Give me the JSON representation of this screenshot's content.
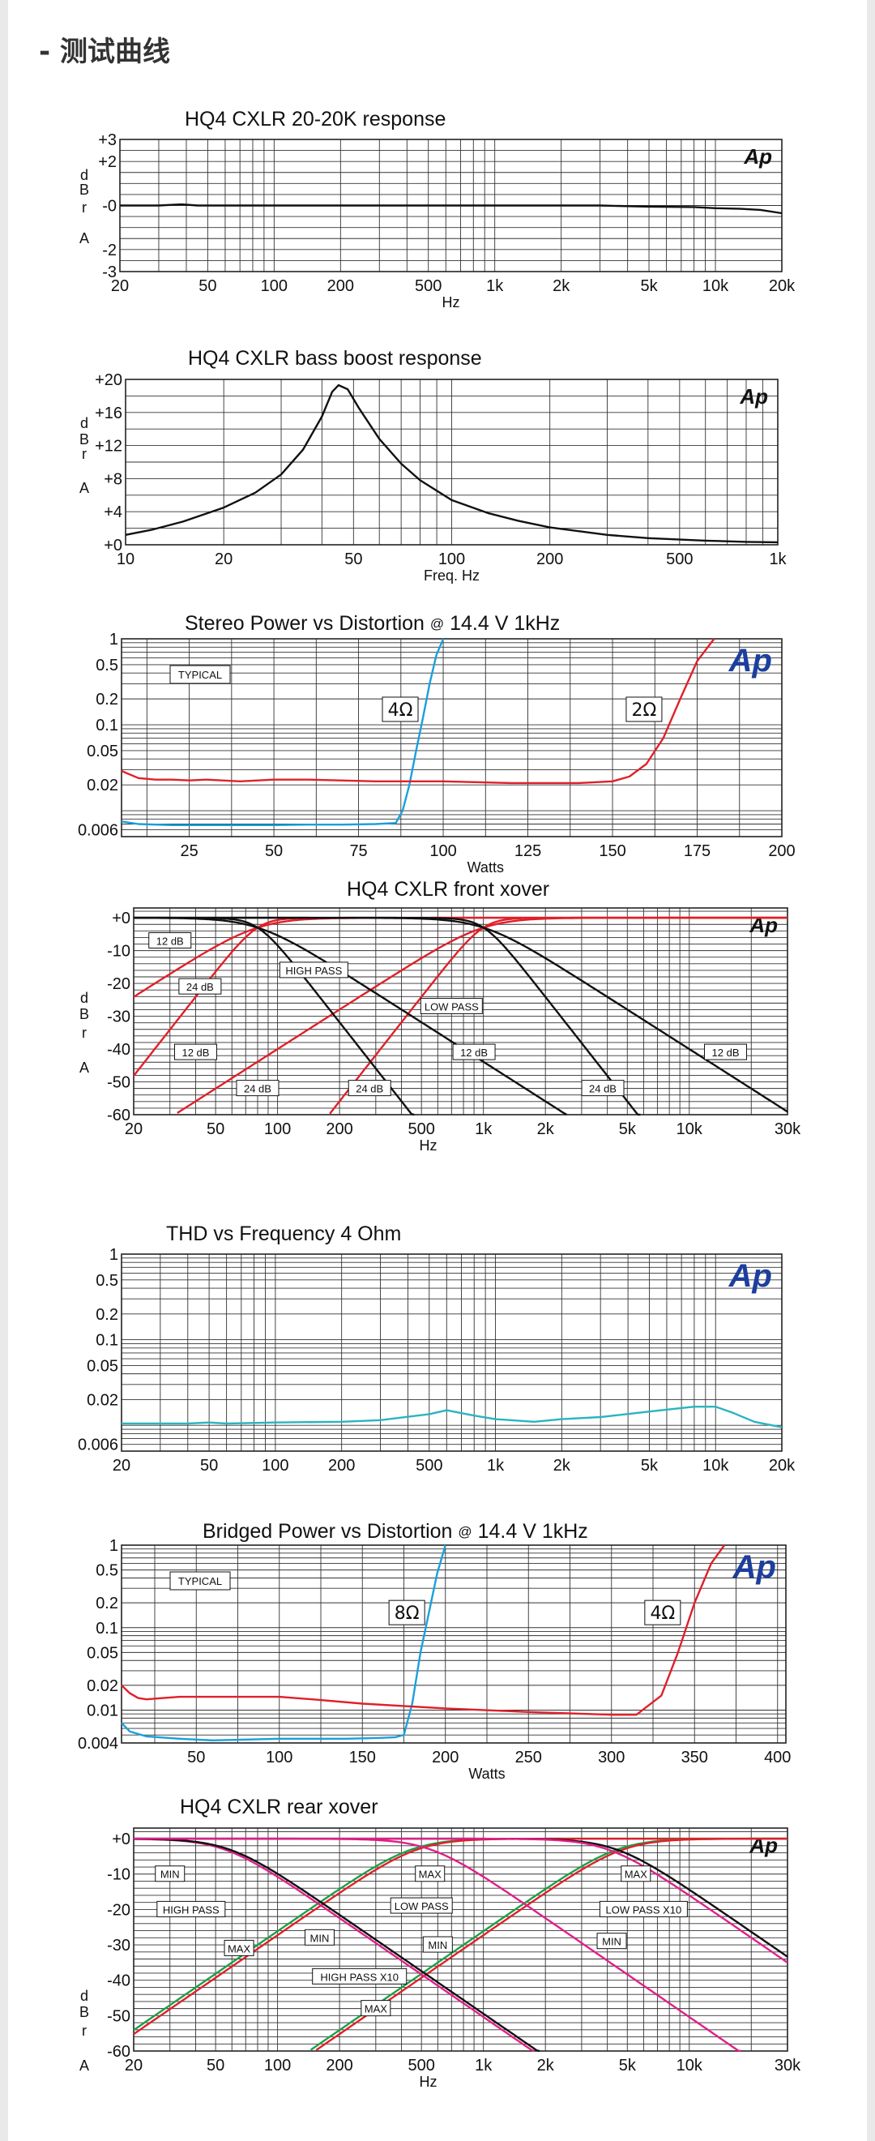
{
  "section": {
    "title": "- 测试曲线"
  },
  "colors": {
    "black": "#111111",
    "red": "#e0202a",
    "blue": "#1aa0dc",
    "cyan": "#2ab4c0",
    "green": "#1aa04a",
    "magenta": "#e0208a",
    "ap_blue": "#1c3f9e"
  },
  "chart_data": [
    {
      "id": "c1",
      "type": "line",
      "scale_x": "log",
      "title": "HQ4 CXLR 20-20K response",
      "xlabel": "Hz",
      "ylabel_letters": [
        "d",
        "B",
        "r",
        "A"
      ],
      "xlim": [
        20,
        20000
      ],
      "ylim": [
        -3,
        3
      ],
      "xticks": [
        20,
        50,
        100,
        200,
        500,
        1000,
        2000,
        5000,
        10000,
        20000
      ],
      "xtick_labels": [
        "20",
        "50",
        "100",
        "200",
        "500",
        "1k",
        "2k",
        "5k",
        "10k",
        "20k"
      ],
      "yticks": [
        3,
        2,
        0,
        -2,
        -3
      ],
      "ytick_labels": [
        "+3",
        "+2",
        "-0",
        "-2",
        "-3"
      ],
      "logo": "Ap",
      "series": [
        {
          "name": "response",
          "color": "#111111",
          "x": [
            20,
            30,
            38,
            45,
            60,
            100,
            300,
            1000,
            3000,
            5000,
            8000,
            10000,
            13000,
            16000,
            20000
          ],
          "y": [
            0,
            0,
            0.05,
            0,
            0,
            0,
            0,
            0,
            0,
            -0.05,
            -0.07,
            -0.12,
            -0.15,
            -0.2,
            -0.35
          ]
        }
      ]
    },
    {
      "id": "c2",
      "type": "line",
      "scale_x": "log",
      "title": "HQ4 CXLR bass boost response",
      "xlabel": "Freq. Hz",
      "ylabel_letters": [
        "d",
        "B",
        "r",
        "A"
      ],
      "xlim": [
        10,
        1000
      ],
      "ylim": [
        0,
        20
      ],
      "xticks": [
        10,
        20,
        50,
        100,
        200,
        500,
        1000
      ],
      "xtick_labels": [
        "10",
        "20",
        "50",
        "100",
        "200",
        "500",
        "1k"
      ],
      "yticks": [
        20,
        16,
        12,
        8,
        4,
        0
      ],
      "ytick_labels": [
        "+20",
        "+16",
        "+12",
        "+8",
        "+4",
        "+0"
      ],
      "logo": "Ap",
      "series": [
        {
          "name": "bass boost",
          "color": "#111111",
          "x": [
            10,
            12,
            15,
            20,
            25,
            30,
            35,
            40,
            43,
            45,
            48,
            52,
            60,
            70,
            80,
            100,
            130,
            160,
            200,
            300,
            400,
            600,
            800,
            1000
          ],
          "y": [
            1.2,
            1.8,
            2.8,
            4.5,
            6.3,
            8.5,
            11.5,
            15.5,
            18.5,
            19.3,
            18.8,
            16.5,
            12.8,
            9.8,
            7.8,
            5.4,
            3.8,
            2.9,
            2.1,
            1.2,
            0.8,
            0.5,
            0.35,
            0.3
          ]
        }
      ]
    },
    {
      "id": "c3",
      "type": "line",
      "scale_x": "linear",
      "scale_y": "log",
      "title": "Stereo Power vs Distortion",
      "title_at": "@",
      "title_rest": "14.4 V 1kHz",
      "xlabel": "Watts",
      "xlim": [
        5,
        200
      ],
      "ylim": [
        0.005,
        1
      ],
      "xticks": [
        25,
        50,
        75,
        100,
        125,
        150,
        175,
        200
      ],
      "xtick_labels": [
        "25",
        "50",
        "75",
        "100",
        "125",
        "150",
        "175",
        "200"
      ],
      "yticks": [
        1,
        0.5,
        0.2,
        0.1,
        0.05,
        0.02,
        0.006
      ],
      "ytick_labels": [
        "1",
        "0.5",
        "0.2",
        "0.1",
        "0.05",
        "0.02",
        "0.006"
      ],
      "logo": "Ap",
      "note": "TYPICAL",
      "load_labels": [
        {
          "text": "4Ω",
          "x": 83,
          "y": 0.13
        },
        {
          "text": "2Ω",
          "x": 155,
          "y": 0.13
        }
      ],
      "series": [
        {
          "name": "4Ω",
          "color": "#1aa0dc",
          "x": [
            5,
            10,
            20,
            30,
            40,
            50,
            60,
            70,
            80,
            86,
            88,
            90,
            92,
            94,
            96,
            98,
            100
          ],
          "y": [
            0.0075,
            0.007,
            0.0068,
            0.0068,
            0.0068,
            0.0068,
            0.0069,
            0.0069,
            0.007,
            0.0072,
            0.01,
            0.02,
            0.05,
            0.12,
            0.3,
            0.65,
            1.0
          ]
        },
        {
          "name": "2Ω",
          "color": "#e0202a",
          "x": [
            5,
            10,
            15,
            20,
            25,
            30,
            40,
            50,
            60,
            80,
            100,
            120,
            140,
            150,
            155,
            160,
            165,
            170,
            175,
            180
          ],
          "y": [
            0.029,
            0.024,
            0.023,
            0.023,
            0.0225,
            0.023,
            0.022,
            0.023,
            0.023,
            0.022,
            0.022,
            0.021,
            0.021,
            0.022,
            0.025,
            0.035,
            0.07,
            0.2,
            0.55,
            1.0
          ]
        }
      ]
    },
    {
      "id": "c4",
      "type": "line",
      "scale_x": "log",
      "title": "HQ4 CXLR front xover",
      "xlabel": "Hz",
      "ylabel_letters": [
        "d",
        "B",
        "r",
        "A"
      ],
      "xlim": [
        20,
        30000
      ],
      "ylim": [
        -60,
        3
      ],
      "xticks": [
        20,
        50,
        100,
        200,
        500,
        1000,
        2000,
        5000,
        10000,
        30000
      ],
      "xtick_labels": [
        "20",
        "50",
        "100",
        "200",
        "500",
        "1k",
        "2k",
        "5k",
        "10k",
        "30k"
      ],
      "yticks": [
        0,
        -10,
        -20,
        -30,
        -40,
        -50,
        -60
      ],
      "ytick_labels": [
        "+0",
        "-10",
        "-20",
        "-30",
        "-40",
        "-50",
        "-60"
      ],
      "logo": "Ap",
      "annotations": [
        {
          "text": "12 dB",
          "x": 30,
          "y": -7
        },
        {
          "text": "24 dB",
          "x": 42,
          "y": -21
        },
        {
          "text": "HIGH PASS",
          "x": 150,
          "y": -16
        },
        {
          "text": "LOW PASS",
          "x": 700,
          "y": -27
        },
        {
          "text": "12 dB",
          "x": 40,
          "y": -41
        },
        {
          "text": "12 dB",
          "x": 900,
          "y": -41
        },
        {
          "text": "12 dB",
          "x": 15000,
          "y": -41
        },
        {
          "text": "24 dB",
          "x": 80,
          "y": -52
        },
        {
          "text": "24 dB",
          "x": 280,
          "y": -52
        },
        {
          "text": "24 dB",
          "x": 3800,
          "y": -52
        }
      ],
      "series": [
        {
          "name": "HP 12dB 80Hz",
          "color": "#e0202a",
          "hp": 80,
          "order": 2
        },
        {
          "name": "HP 24dB 80Hz",
          "color": "#e0202a",
          "hp": 80,
          "order": 4
        },
        {
          "name": "HP 12dB 1kHz",
          "color": "#e0202a",
          "hp": 1000,
          "order": 2
        },
        {
          "name": "HP 24dB 1kHz",
          "color": "#e0202a",
          "hp": 1000,
          "order": 4
        },
        {
          "name": "LP 12dB 80Hz",
          "color": "#111111",
          "lp": 80,
          "order": 2
        },
        {
          "name": "LP 24dB 80Hz",
          "color": "#111111",
          "lp": 80,
          "order": 4
        },
        {
          "name": "LP 12dB 1kHz",
          "color": "#111111",
          "lp": 1000,
          "order": 2
        },
        {
          "name": "LP 24dB 1kHz",
          "color": "#111111",
          "lp": 1000,
          "order": 4
        }
      ]
    },
    {
      "id": "c5",
      "type": "line",
      "scale_x": "log",
      "scale_y": "log",
      "title": "THD vs Frequency 4 Ohm",
      "xlabel": "",
      "xlim": [
        20,
        20000
      ],
      "ylim": [
        0.005,
        1
      ],
      "xticks": [
        20,
        50,
        100,
        200,
        500,
        1000,
        2000,
        5000,
        10000,
        20000
      ],
      "xtick_labels": [
        "20",
        "50",
        "100",
        "200",
        "500",
        "1k",
        "2k",
        "5k",
        "10k",
        "20k"
      ],
      "yticks": [
        1,
        0.5,
        0.2,
        0.1,
        0.05,
        0.02,
        0.006
      ],
      "ytick_labels": [
        "1",
        "0.5",
        "0.2",
        "0.1",
        "0.05",
        "0.02",
        "0.006"
      ],
      "logo": "Ap",
      "series": [
        {
          "name": "THD 4Ω",
          "color": "#2ab4c0",
          "x": [
            20,
            40,
            50,
            60,
            100,
            200,
            300,
            500,
            600,
            800,
            1000,
            1500,
            2000,
            3000,
            5000,
            8000,
            10000,
            12000,
            15000,
            20000
          ],
          "y": [
            0.0105,
            0.0105,
            0.0108,
            0.0105,
            0.0108,
            0.011,
            0.0115,
            0.0135,
            0.015,
            0.013,
            0.0118,
            0.011,
            0.0118,
            0.0125,
            0.0145,
            0.0165,
            0.0165,
            0.014,
            0.011,
            0.0095
          ]
        }
      ]
    },
    {
      "id": "c6",
      "type": "line",
      "scale_x": "linear",
      "scale_y": "log",
      "title": "Bridged Power vs Distortion",
      "title_at": "@",
      "title_rest": "14.4 V 1kHz",
      "xlabel": "Watts",
      "xlim": [
        5,
        405
      ],
      "ylim": [
        0.004,
        1
      ],
      "xticks": [
        50,
        100,
        150,
        200,
        250,
        300,
        350,
        400
      ],
      "xtick_labels": [
        "50",
        "100",
        "150",
        "200",
        "250",
        "300",
        "350",
        "400"
      ],
      "yticks": [
        1,
        0.5,
        0.2,
        0.1,
        0.05,
        0.02,
        0.01,
        0.004
      ],
      "ytick_labels": [
        "1",
        "0.5",
        "0.2",
        "0.1",
        "0.05",
        "0.02",
        "0.01",
        "0.004"
      ],
      "logo": "Ap",
      "note": "TYPICAL",
      "load_labels": [
        {
          "text": "8Ω",
          "x": 168,
          "y": 0.13
        },
        {
          "text": "4Ω",
          "x": 322,
          "y": 0.13
        }
      ],
      "series": [
        {
          "name": "8Ω",
          "color": "#1aa0dc",
          "x": [
            5,
            10,
            20,
            40,
            60,
            80,
            100,
            120,
            140,
            160,
            170,
            175,
            180,
            185,
            190,
            195,
            200
          ],
          "y": [
            0.007,
            0.0055,
            0.0048,
            0.0045,
            0.0043,
            0.0044,
            0.0045,
            0.0045,
            0.0045,
            0.0046,
            0.0047,
            0.005,
            0.012,
            0.05,
            0.15,
            0.45,
            1.0
          ]
        },
        {
          "name": "4Ω",
          "color": "#e0202a",
          "x": [
            5,
            10,
            15,
            20,
            30,
            40,
            60,
            80,
            100,
            120,
            150,
            200,
            250,
            300,
            315,
            330,
            340,
            350,
            360,
            368
          ],
          "y": [
            0.02,
            0.016,
            0.014,
            0.0135,
            0.014,
            0.0145,
            0.0145,
            0.0145,
            0.0145,
            0.0135,
            0.012,
            0.0105,
            0.0095,
            0.0088,
            0.0088,
            0.015,
            0.05,
            0.2,
            0.6,
            1.0
          ]
        }
      ]
    },
    {
      "id": "c7",
      "type": "line",
      "scale_x": "log",
      "title": "HQ4 CXLR rear xover",
      "xlabel": "Hz",
      "ylabel_letters": [
        "d",
        "B",
        "r",
        "A"
      ],
      "xlim": [
        20,
        30000
      ],
      "ylim": [
        -60,
        3
      ],
      "xticks": [
        20,
        50,
        100,
        200,
        500,
        1000,
        2000,
        5000,
        10000,
        30000
      ],
      "xtick_labels": [
        "20",
        "50",
        "100",
        "200",
        "500",
        "1k",
        "2k",
        "5k",
        "10k",
        "30k"
      ],
      "yticks": [
        0,
        -10,
        -20,
        -30,
        -40,
        -50,
        -60
      ],
      "ytick_labels": [
        "+0",
        "-10",
        "-20",
        "-30",
        "-40",
        "-50",
        "-60"
      ],
      "logo": "Ap",
      "annotations": [
        {
          "text": "MIN",
          "x": 30,
          "y": -10
        },
        {
          "text": "HIGH PASS",
          "x": 38,
          "y": -20
        },
        {
          "text": "MAX",
          "x": 65,
          "y": -31
        },
        {
          "text": "MIN",
          "x": 160,
          "y": -28
        },
        {
          "text": "HIGH PASS X10",
          "x": 250,
          "y": -39
        },
        {
          "text": "MAX",
          "x": 300,
          "y": -48
        },
        {
          "text": "MAX",
          "x": 550,
          "y": -10
        },
        {
          "text": "LOW PASS",
          "x": 500,
          "y": -19
        },
        {
          "text": "MIN",
          "x": 600,
          "y": -30
        },
        {
          "text": "MAX",
          "x": 5500,
          "y": -10
        },
        {
          "text": "LOW PASS X10",
          "x": 6000,
          "y": -20
        },
        {
          "text": "MIN",
          "x": 4200,
          "y": -29
        }
      ],
      "series": [
        {
          "name": "HP min",
          "color": "#1aa04a",
          "hp": 450,
          "order": 2
        },
        {
          "name": "HP max",
          "color": "#e0202a",
          "hp": 480,
          "order": 2
        },
        {
          "name": "HP x10 min",
          "color": "#1aa04a",
          "hp": 4500,
          "order": 2
        },
        {
          "name": "HP x10 max",
          "color": "#e0202a",
          "hp": 4800,
          "order": 2
        },
        {
          "name": "LP min",
          "color": "#e0208a",
          "lp": 55,
          "order": 2
        },
        {
          "name": "LP max",
          "color": "#111111",
          "lp": 58,
          "order": 2
        },
        {
          "name": "LP x10 min",
          "color": "#e0208a",
          "lp": 550,
          "order": 2
        },
        {
          "name": "LP x10 max",
          "color": "#111111",
          "lp": 4400,
          "order": 2
        },
        {
          "name": "LP x10 alt",
          "color": "#e0208a",
          "lp": 4000,
          "order": 2
        }
      ]
    }
  ]
}
